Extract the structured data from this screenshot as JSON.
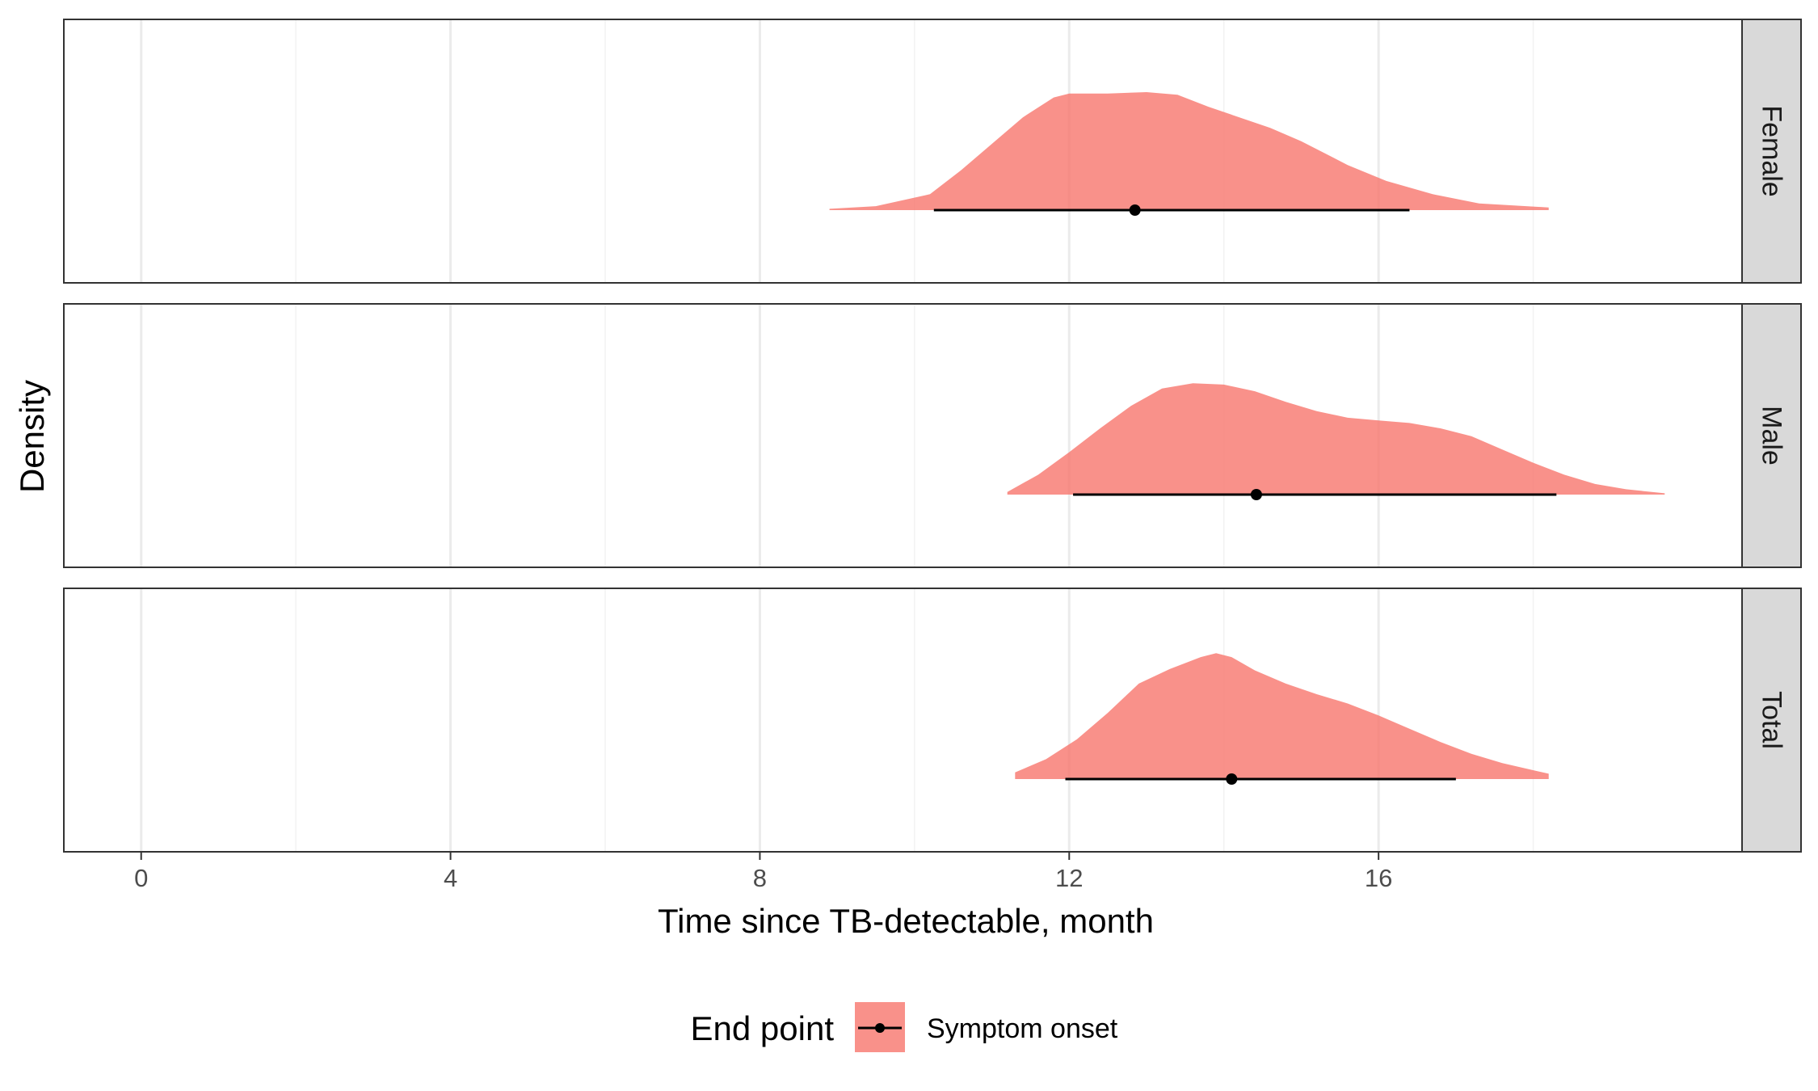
{
  "chart_data": {
    "type": "area",
    "subtype": "faceted density halfeye with median point and interval",
    "xlabel": "Time since TB-detectable, month",
    "ylabel": "Density",
    "x_ticks": [
      0,
      4,
      8,
      12,
      16
    ],
    "xlim": [
      -1,
      20.7
    ],
    "grid": "vertical major and minor gridlines",
    "fill_color": "#F8766D",
    "fill_opacity": 0.8,
    "strip_fill": "#D9D9D9",
    "legend": {
      "title": "End point",
      "position": "bottom",
      "entries": [
        "Symptom onset"
      ]
    },
    "panels": [
      {
        "label": "Female",
        "point": 12.85,
        "interval": [
          10.25,
          16.4
        ],
        "density": [
          [
            8.9,
            0.01
          ],
          [
            9.5,
            0.03
          ],
          [
            10.2,
            0.12
          ],
          [
            10.6,
            0.3
          ],
          [
            11.0,
            0.5
          ],
          [
            11.4,
            0.7
          ],
          [
            11.8,
            0.85
          ],
          [
            12.0,
            0.88
          ],
          [
            12.5,
            0.88
          ],
          [
            13.0,
            0.89
          ],
          [
            13.4,
            0.87
          ],
          [
            13.8,
            0.78
          ],
          [
            14.2,
            0.7
          ],
          [
            14.6,
            0.62
          ],
          [
            15.0,
            0.52
          ],
          [
            15.6,
            0.34
          ],
          [
            16.1,
            0.22
          ],
          [
            16.7,
            0.12
          ],
          [
            17.3,
            0.05
          ],
          [
            18.2,
            0.02
          ]
        ]
      },
      {
        "label": "Male",
        "point": 14.42,
        "interval": [
          12.05,
          18.3
        ],
        "density": [
          [
            11.2,
            0.02
          ],
          [
            11.6,
            0.15
          ],
          [
            12.0,
            0.32
          ],
          [
            12.4,
            0.5
          ],
          [
            12.8,
            0.67
          ],
          [
            13.2,
            0.8
          ],
          [
            13.6,
            0.84
          ],
          [
            14.0,
            0.83
          ],
          [
            14.4,
            0.78
          ],
          [
            14.8,
            0.7
          ],
          [
            15.2,
            0.63
          ],
          [
            15.6,
            0.58
          ],
          [
            16.0,
            0.56
          ],
          [
            16.4,
            0.54
          ],
          [
            16.8,
            0.5
          ],
          [
            17.2,
            0.44
          ],
          [
            17.6,
            0.34
          ],
          [
            18.0,
            0.24
          ],
          [
            18.4,
            0.15
          ],
          [
            18.8,
            0.08
          ],
          [
            19.2,
            0.04
          ],
          [
            19.7,
            0.01
          ]
        ]
      },
      {
        "label": "Total",
        "point": 14.1,
        "interval": [
          11.95,
          17.0
        ],
        "density": [
          [
            11.3,
            0.05
          ],
          [
            11.7,
            0.15
          ],
          [
            12.1,
            0.3
          ],
          [
            12.5,
            0.5
          ],
          [
            12.9,
            0.72
          ],
          [
            13.3,
            0.83
          ],
          [
            13.7,
            0.92
          ],
          [
            13.9,
            0.95
          ],
          [
            14.1,
            0.92
          ],
          [
            14.4,
            0.82
          ],
          [
            14.8,
            0.72
          ],
          [
            15.2,
            0.64
          ],
          [
            15.6,
            0.57
          ],
          [
            16.0,
            0.48
          ],
          [
            16.4,
            0.38
          ],
          [
            16.8,
            0.28
          ],
          [
            17.2,
            0.19
          ],
          [
            17.6,
            0.12
          ],
          [
            18.2,
            0.04
          ]
        ]
      }
    ]
  }
}
